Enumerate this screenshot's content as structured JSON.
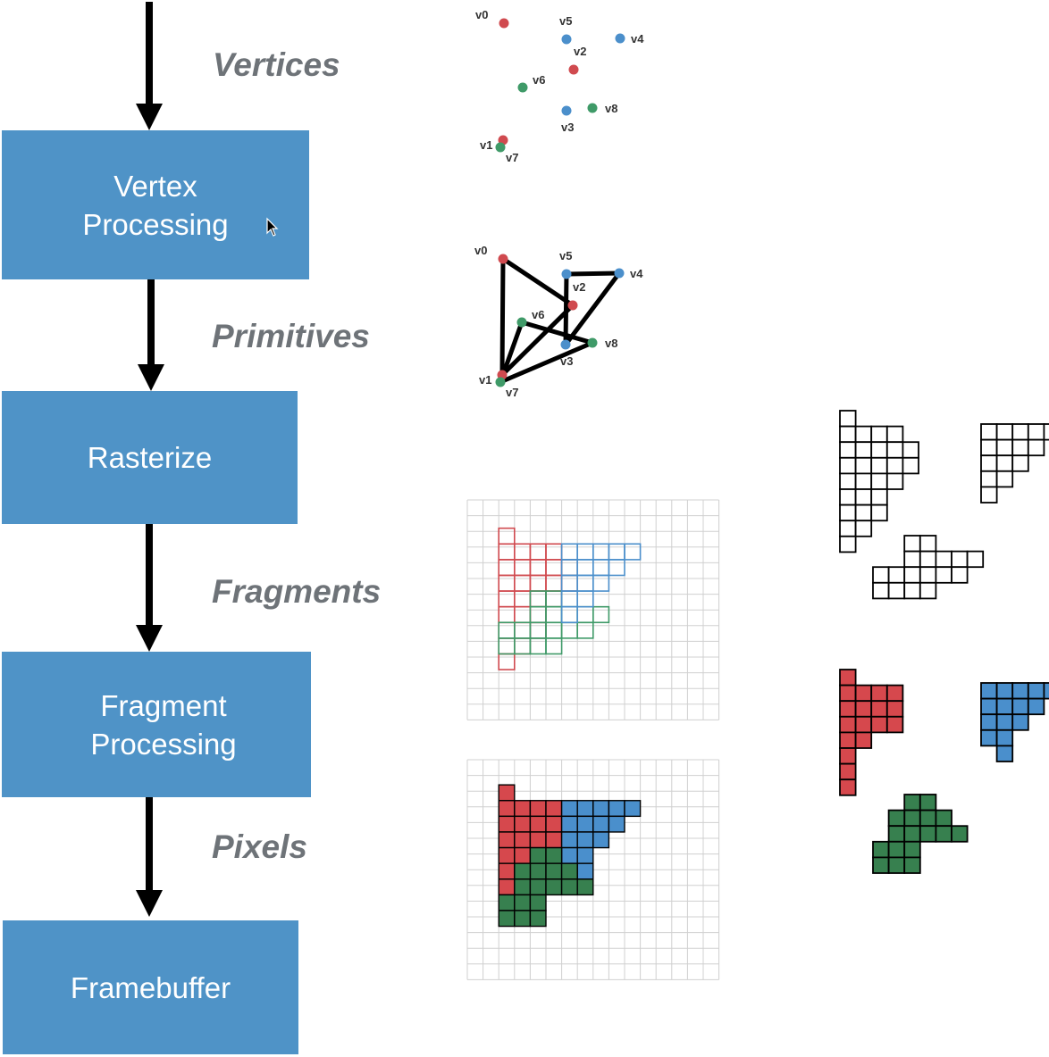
{
  "pipeline": {
    "stages": [
      {
        "id": "vertex",
        "lines": [
          "Vertex",
          "Processing"
        ]
      },
      {
        "id": "rasterize",
        "lines": [
          "Rasterize"
        ]
      },
      {
        "id": "fragment",
        "lines": [
          "Fragment",
          "Processing"
        ]
      },
      {
        "id": "framebuffer",
        "lines": [
          "Framebuffer"
        ]
      }
    ],
    "flow_labels": [
      "Vertices",
      "Primitives",
      "Fragments",
      "Pixels"
    ]
  },
  "colors": {
    "stage_fill": "#4f93c7",
    "red": "#d04a4f",
    "blue": "#4b8fcb",
    "green": "#3f9a68",
    "red_fill": "#d6484d",
    "blue_fill": "#4a8fcc",
    "green_fill": "#37804f",
    "grid_line": "#d0d0d0",
    "label_gray": "#6e7378"
  },
  "vertices": [
    {
      "name": "v0",
      "color": "red"
    },
    {
      "name": "v1",
      "color": "red"
    },
    {
      "name": "v2",
      "color": "red"
    },
    {
      "name": "v3",
      "color": "blue"
    },
    {
      "name": "v4",
      "color": "blue"
    },
    {
      "name": "v5",
      "color": "blue"
    },
    {
      "name": "v6",
      "color": "green"
    },
    {
      "name": "v7",
      "color": "green"
    },
    {
      "name": "v8",
      "color": "green"
    }
  ],
  "triangles": [
    {
      "vertices": [
        "v0",
        "v1",
        "v2"
      ],
      "color": "red"
    },
    {
      "vertices": [
        "v3",
        "v4",
        "v5"
      ],
      "color": "blue"
    },
    {
      "vertices": [
        "v6",
        "v7",
        "v8"
      ],
      "color": "green"
    }
  ],
  "fragments": {
    "red": [
      [
        0,
        0
      ],
      [
        0,
        1
      ],
      [
        1,
        1
      ],
      [
        2,
        1
      ],
      [
        3,
        1
      ],
      [
        0,
        2
      ],
      [
        1,
        2
      ],
      [
        2,
        2
      ],
      [
        3,
        2
      ],
      [
        4,
        2
      ],
      [
        0,
        3
      ],
      [
        1,
        3
      ],
      [
        2,
        3
      ],
      [
        3,
        3
      ],
      [
        4,
        3
      ],
      [
        0,
        4
      ],
      [
        1,
        4
      ],
      [
        2,
        4
      ],
      [
        3,
        4
      ],
      [
        0,
        5
      ],
      [
        1,
        5
      ],
      [
        2,
        5
      ],
      [
        0,
        6
      ],
      [
        1,
        6
      ],
      [
        2,
        6
      ],
      [
        0,
        7
      ],
      [
        1,
        7
      ],
      [
        0,
        8
      ]
    ],
    "blue": [
      [
        4,
        1
      ],
      [
        5,
        1
      ],
      [
        6,
        1
      ],
      [
        7,
        1
      ],
      [
        8,
        1
      ],
      [
        4,
        2
      ],
      [
        5,
        2
      ],
      [
        6,
        2
      ],
      [
        7,
        2
      ],
      [
        4,
        3
      ],
      [
        5,
        3
      ],
      [
        6,
        3
      ],
      [
        4,
        4
      ],
      [
        5,
        4
      ],
      [
        4,
        5
      ]
    ],
    "green": [
      [
        2,
        4
      ],
      [
        3,
        4
      ],
      [
        2,
        5
      ],
      [
        3,
        5
      ],
      [
        4,
        5
      ],
      [
        5,
        5
      ],
      [
        6,
        5
      ],
      [
        0,
        6
      ],
      [
        1,
        6
      ],
      [
        2,
        6
      ],
      [
        3,
        6
      ],
      [
        4,
        6
      ],
      [
        5,
        6
      ],
      [
        0,
        7
      ],
      [
        1,
        7
      ],
      [
        2,
        7
      ],
      [
        3,
        7
      ]
    ]
  },
  "pixels": {
    "red": [
      [
        0,
        0
      ],
      [
        0,
        1
      ],
      [
        1,
        1
      ],
      [
        2,
        1
      ],
      [
        3,
        1
      ],
      [
        0,
        2
      ],
      [
        1,
        2
      ],
      [
        2,
        2
      ],
      [
        3,
        2
      ],
      [
        0,
        3
      ],
      [
        1,
        3
      ],
      [
        2,
        3
      ],
      [
        3,
        3
      ],
      [
        0,
        4
      ],
      [
        1,
        4
      ],
      [
        0,
        5
      ],
      [
        0,
        6
      ],
      [
        0,
        7
      ]
    ],
    "blue": [
      [
        4,
        1
      ],
      [
        5,
        1
      ],
      [
        6,
        1
      ],
      [
        7,
        1
      ],
      [
        8,
        1
      ],
      [
        4,
        2
      ],
      [
        5,
        2
      ],
      [
        6,
        2
      ],
      [
        7,
        2
      ],
      [
        4,
        3
      ],
      [
        5,
        3
      ],
      [
        6,
        3
      ],
      [
        4,
        4
      ],
      [
        5,
        4
      ],
      [
        5,
        5
      ]
    ],
    "green": [
      [
        2,
        4
      ],
      [
        3,
        4
      ],
      [
        2,
        5
      ],
      [
        3,
        5
      ],
      [
        4,
        5
      ],
      [
        1,
        5
      ],
      [
        1,
        6
      ],
      [
        2,
        6
      ],
      [
        3,
        6
      ],
      [
        4,
        6
      ],
      [
        5,
        6
      ],
      [
        0,
        7
      ],
      [
        1,
        7
      ],
      [
        2,
        7
      ],
      [
        0,
        8
      ],
      [
        1,
        8
      ],
      [
        2,
        8
      ]
    ]
  }
}
